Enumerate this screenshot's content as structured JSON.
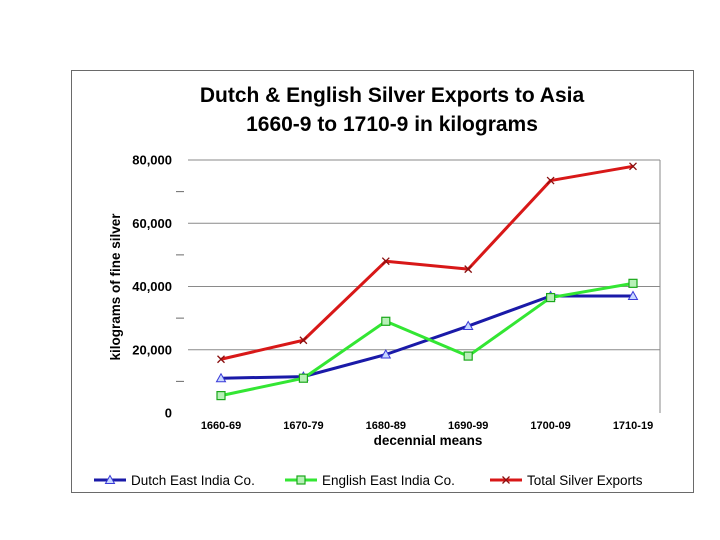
{
  "chart_data": {
    "type": "line",
    "title_lines": [
      "Dutch & English Silver Exports to Asia",
      "1660-9 to 1710-9 in kilograms"
    ],
    "xlabel": "decennial means",
    "ylabel": "kilograms of fine silver",
    "categories": [
      "1660-69",
      "1670-79",
      "1680-89",
      "1690-99",
      "1700-09",
      "1710-19"
    ],
    "ylim": [
      0,
      80000
    ],
    "yticks": [
      0,
      20000,
      40000,
      60000,
      80000
    ],
    "ytick_labels": [
      "0",
      "20,000",
      "40,000",
      "60,000",
      "80,000"
    ],
    "grid": true,
    "legend_position": "bottom",
    "series": [
      {
        "name": "Dutch East India Co.",
        "color": "#1a1aa8",
        "marker": "triangle",
        "values": [
          11000,
          11500,
          18500,
          27500,
          37000,
          37000
        ]
      },
      {
        "name": "English East India Co.",
        "color": "#33e633",
        "marker": "square",
        "values": [
          5500,
          11000,
          29000,
          18000,
          36500,
          41000
        ]
      },
      {
        "name": "Total Silver Exports",
        "color": "#d81818",
        "marker": "x",
        "values": [
          17000,
          23000,
          48000,
          45500,
          73500,
          78000
        ]
      }
    ]
  }
}
